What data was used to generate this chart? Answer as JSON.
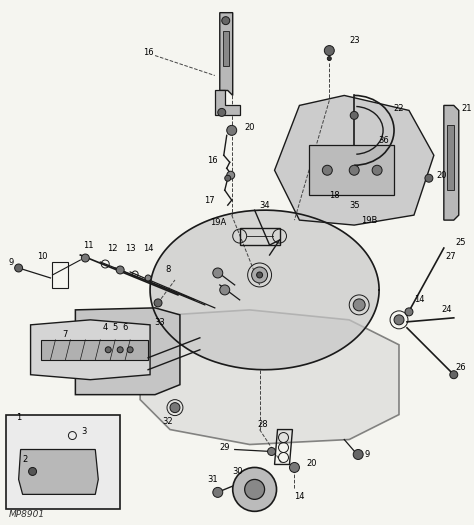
{
  "background_color": "#f5f5f0",
  "fig_width": 4.74,
  "fig_height": 5.25,
  "dpi": 100,
  "watermark": "MP8901",
  "line_color": "#1a1a1a",
  "dashed_color": "#444444",
  "label_fontsize": 6.0,
  "label_color": "#000000",
  "gray_fill": "#b8b8b8",
  "light_gray": "#d8d8d8",
  "mid_gray": "#999999"
}
